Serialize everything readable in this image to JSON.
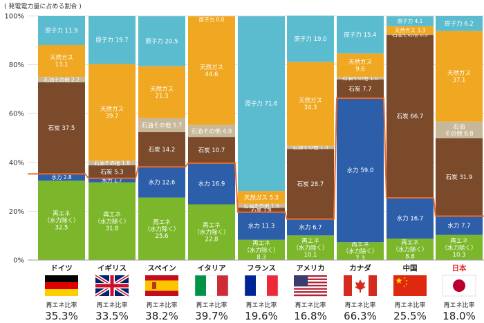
{
  "chart_data": {
    "type": "bar",
    "stacked": true,
    "caption": "( 発電電力量に占める割合 )",
    "ylim": [
      0,
      100
    ],
    "yticks": [
      {
        "value": 0,
        "label": "0%"
      },
      {
        "value": 20,
        "label": "20%"
      },
      {
        "value": 40,
        "label": "40%"
      },
      {
        "value": 60,
        "label": "60%"
      },
      {
        "value": 80,
        "label": "80%"
      },
      {
        "value": 100,
        "label": "100%"
      }
    ],
    "grid": true,
    "colors": {
      "renew": "#7cb72b",
      "hydro": "#2c5eaa",
      "coal": "#7a4a2b",
      "oil": "#c8b89a",
      "gas": "#f0a822",
      "nuclear": "#5bbccf",
      "line": "#ee6a2b",
      "japan_label": "#e8252a"
    },
    "countries": [
      {
        "name": "ドイツ",
        "flag": "de",
        "ratio_label": "再エネ比率",
        "ratio": "35.3%",
        "segments": [
          {
            "key": "renew",
            "value": 32.5,
            "label": "再エネ\n（水力除く）\n32.5"
          },
          {
            "key": "hydro",
            "value": 2.8,
            "label": "水力 2.8"
          },
          {
            "key": "coal",
            "value": 37.5,
            "label": "石炭 37.5"
          },
          {
            "key": "oil",
            "value": 2.2,
            "label": "石油その他 2.2"
          },
          {
            "key": "gas",
            "value": 13.1,
            "label": "天然ガス\n13.1"
          },
          {
            "key": "nuclear",
            "value": 11.9,
            "label": "原子力 11.9"
          }
        ]
      },
      {
        "name": "イギリス",
        "flag": "uk",
        "ratio_label": "再エネ比率",
        "ratio": "33.5%",
        "segments": [
          {
            "key": "renew",
            "value": 31.8,
            "label": "再エネ\n（水力除く）\n31.8"
          },
          {
            "key": "hydro",
            "value": 1.7,
            "label": "水力 1.7"
          },
          {
            "key": "coal",
            "value": 5.3,
            "label": "石炭 5.3"
          },
          {
            "key": "oil",
            "value": 1.8,
            "label": "石油その他 1.8"
          },
          {
            "key": "gas",
            "value": 39.7,
            "label": "天然ガス\n39.7"
          },
          {
            "key": "nuclear",
            "value": 19.7,
            "label": "原子力 19.7"
          }
        ]
      },
      {
        "name": "スペイン",
        "flag": "es",
        "ratio_label": "再エネ比率",
        "ratio": "38.2%",
        "segments": [
          {
            "key": "renew",
            "value": 25.6,
            "label": "再エネ\n（水力除く）\n25.6"
          },
          {
            "key": "hydro",
            "value": 12.6,
            "label": "水力 12.6"
          },
          {
            "key": "coal",
            "value": 14.2,
            "label": "石炭 14.2"
          },
          {
            "key": "oil",
            "value": 5.7,
            "label": "石油その他 5.7"
          },
          {
            "key": "gas",
            "value": 21.3,
            "label": "天然ガス\n21.3"
          },
          {
            "key": "nuclear",
            "value": 20.5,
            "label": "原子力 20.5"
          }
        ]
      },
      {
        "name": "イタリア",
        "flag": "it",
        "ratio_label": "再エネ比率",
        "ratio": "39.7%",
        "segments": [
          {
            "key": "renew",
            "value": 22.8,
            "label": "再エネ\n（水力除く）\n22.8"
          },
          {
            "key": "hydro",
            "value": 16.9,
            "label": "水力 16.9"
          },
          {
            "key": "coal",
            "value": 10.7,
            "label": "石炭 10.7"
          },
          {
            "key": "oil",
            "value": 4.9,
            "label": "石油その他 4.9"
          },
          {
            "key": "gas",
            "value": 44.6,
            "label": "天然ガス\n44.6"
          },
          {
            "key": "nuclear",
            "value": 0.0,
            "label": "原子力 0.0"
          }
        ]
      },
      {
        "name": "フランス",
        "flag": "fr",
        "ratio_label": "再エネ比率",
        "ratio": "19.6%",
        "segments": [
          {
            "key": "renew",
            "value": 8.3,
            "label": "再エネ\n（水力除く）\n8.3"
          },
          {
            "key": "hydro",
            "value": 11.3,
            "label": "水力 11.3"
          },
          {
            "key": "coal",
            "value": 1.8,
            "label": "石炭 1.8"
          },
          {
            "key": "oil",
            "value": 1.6,
            "label": "石油その他 1.6"
          },
          {
            "key": "gas",
            "value": 5.3,
            "label": "天然ガス 5.3"
          },
          {
            "key": "nuclear",
            "value": 71.6,
            "label": "原子力 71.6"
          }
        ]
      },
      {
        "name": "アメリカ",
        "flag": "us",
        "ratio_label": "再エネ比率",
        "ratio": "16.8%",
        "segments": [
          {
            "key": "renew",
            "value": 10.1,
            "label": "再エネ\n（水力除く）\n10.1"
          },
          {
            "key": "hydro",
            "value": 6.7,
            "label": "水力 6.7"
          },
          {
            "key": "coal",
            "value": 28.7,
            "label": "石炭 28.7"
          },
          {
            "key": "oil",
            "value": 1.3,
            "label": "石油その他 1.3"
          },
          {
            "key": "gas",
            "value": 34.3,
            "label": "天然ガス\n34.3"
          },
          {
            "key": "nuclear",
            "value": 19.0,
            "label": "原子力 19.0"
          }
        ]
      },
      {
        "name": "カナダ",
        "flag": "ca",
        "ratio_label": "再エネ比率",
        "ratio": "66.3%",
        "segments": [
          {
            "key": "renew",
            "value": 7.3,
            "label": "再エネ\n（水力除く）\n7.3"
          },
          {
            "key": "hydro",
            "value": 59.0,
            "label": "水力 59.0"
          },
          {
            "key": "coal",
            "value": 7.7,
            "label": "石炭 7.7"
          },
          {
            "key": "oil",
            "value": 1.0,
            "label": "石油その他 1.0"
          },
          {
            "key": "gas",
            "value": 9.6,
            "label": "天然ガス\n9.6"
          },
          {
            "key": "nuclear",
            "value": 15.4,
            "label": "原子力 15.4"
          }
        ]
      },
      {
        "name": "中国",
        "flag": "cn",
        "ratio_label": "再エネ比率",
        "ratio": "25.5%",
        "segments": [
          {
            "key": "renew",
            "value": 8.8,
            "label": "再エネ\n（水力除く）\n8.8"
          },
          {
            "key": "hydro",
            "value": 16.7,
            "label": "水力 16.7"
          },
          {
            "key": "coal",
            "value": 66.7,
            "label": "石炭 66.7"
          },
          {
            "key": "oil",
            "value": 0.3,
            "label": "石油その他 0.3"
          },
          {
            "key": "gas",
            "value": 3.3,
            "label": "天然ガス 3.3"
          },
          {
            "key": "nuclear",
            "value": 4.1,
            "label": "原子力 4.1"
          }
        ]
      },
      {
        "name": "日本",
        "flag": "jp",
        "ratio_label": "再エネ比率",
        "ratio": "18.0%",
        "highlight": true,
        "segments": [
          {
            "key": "renew",
            "value": 10.3,
            "label": "再エネ\n（水力除く）\n10.3"
          },
          {
            "key": "hydro",
            "value": 7.7,
            "label": "水力 7.7"
          },
          {
            "key": "coal",
            "value": 31.9,
            "label": "石炭 31.9"
          },
          {
            "key": "oil",
            "value": 6.8,
            "label": "石油\nその他 6.8"
          },
          {
            "key": "gas",
            "value": 37.1,
            "label": "天然ガス\n37.1"
          },
          {
            "key": "nuclear",
            "value": 6.2,
            "label": "原子力 6.2"
          }
        ]
      }
    ]
  }
}
